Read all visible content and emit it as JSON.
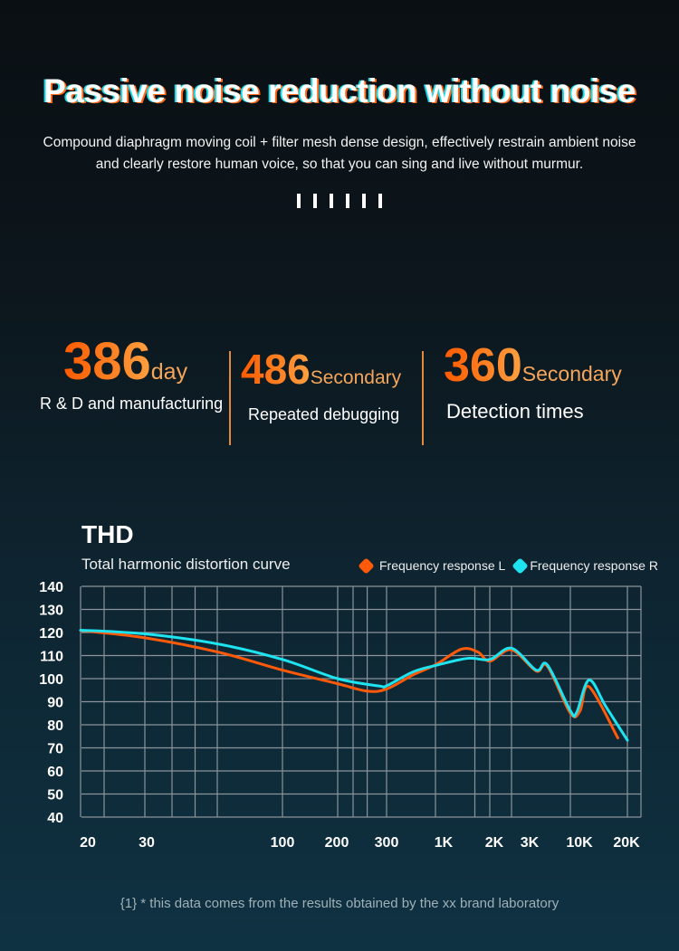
{
  "header": {
    "title": "Passive noise reduction without noise",
    "description": "Compound diaphragm moving coil + filter mesh dense design, effectively restrain ambient noise and clearly restore human voice, so that you can sing and live without murmur."
  },
  "stats": [
    {
      "value": "386",
      "unit": "day",
      "label": "R & D and manufacturing"
    },
    {
      "value": "486",
      "unit": "Secondary",
      "label": "Repeated debugging"
    },
    {
      "value": "360",
      "unit": "Secondary",
      "label": "Detection times"
    }
  ],
  "footnote": "{1} * this data comes from the results obtained by the xx brand laboratory",
  "colors": {
    "accent": "#ff6a10",
    "series_l": "#ff5a0a",
    "series_r": "#1ee3f0"
  },
  "chart_data": {
    "type": "line",
    "title": "THD",
    "subtitle": "Total harmonic distortion curve",
    "xscale": "log (uneven)",
    "x_tick_labels": [
      "20",
      "30",
      "100",
      "200",
      "300",
      "1K",
      "2K",
      "3K",
      "10K",
      "20K"
    ],
    "x_ticks": [
      20,
      30,
      100,
      200,
      300,
      1000,
      2000,
      3000,
      10000,
      20000
    ],
    "y_ticks": [
      140,
      130,
      120,
      110,
      100,
      90,
      80,
      70,
      60,
      50,
      40
    ],
    "ylim": [
      40,
      140
    ],
    "grid": true,
    "legend_position": "top-right",
    "series": [
      {
        "name": "Frequency response L",
        "color": "#ff5a0a",
        "x": [
          20,
          30,
          57,
          100,
          200,
          255,
          300,
          580,
          1000,
          1395,
          1720,
          2000,
          3000,
          4970,
          6240,
          10000,
          11250,
          12560,
          17800
        ],
        "y": [
          120.9,
          117.7,
          111.5,
          103.7,
          97.8,
          94.6,
          95.5,
          101.7,
          106,
          112.8,
          111.5,
          107.6,
          112.5,
          103.3,
          105.4,
          85,
          86,
          96.5,
          74.3
        ]
      },
      {
        "name": "Frequency response R",
        "color": "#1ee3f0",
        "x": [
          20,
          30,
          57,
          100,
          200,
          282,
          300,
          580,
          1000,
          1510,
          2000,
          3000,
          4970,
          6240,
          10000,
          10800,
          12560,
          15370,
          20000
        ],
        "y": [
          121,
          119.4,
          115,
          108.3,
          100,
          96.8,
          96.9,
          103,
          105.7,
          108.8,
          108.3,
          113.2,
          103.7,
          106,
          86.1,
          85.4,
          99.4,
          88,
          73.3
        ]
      }
    ]
  }
}
